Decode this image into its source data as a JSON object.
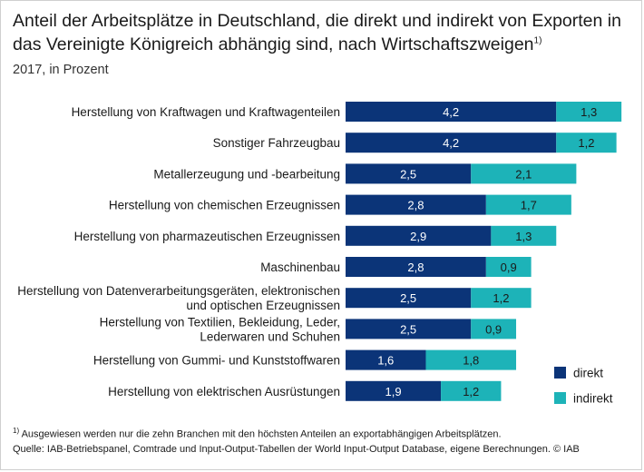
{
  "title": "Anteil der Arbeitsplätze in Deutschland, die direkt und indirekt von Exporten in das Vereinigte Königreich abhängig sind, nach Wirtschaftszweigen",
  "title_footnote_mark": "1)",
  "subtitle": "2017, in Prozent",
  "colors": {
    "direkt": "#0b3478",
    "indirekt": "#1db3b8"
  },
  "chart_data": {
    "type": "bar",
    "orientation": "horizontal",
    "stacked": true,
    "categories": [
      [
        "Herstellung von Kraftwagen und Kraftwagenteilen"
      ],
      [
        "Sonstiger Fahrzeugbau"
      ],
      [
        "Metallerzeugung und -bearbeitung"
      ],
      [
        "Herstellung von chemischen Erzeugnissen"
      ],
      [
        "Herstellung von pharmazeutischen Erzeugnissen"
      ],
      [
        "Maschinenbau"
      ],
      [
        "Herstellung von Datenverarbeitungsgeräten, elektronischen",
        "und optischen Erzeugnissen"
      ],
      [
        "Herstellung von Textilien, Bekleidung, Leder,",
        "Lederwaren und Schuhen"
      ],
      [
        "Herstellung von Gummi- und Kunststoffwaren"
      ],
      [
        "Herstellung von elektrischen Ausrüstungen"
      ]
    ],
    "series": [
      {
        "name": "direkt",
        "values": [
          4.2,
          4.2,
          2.5,
          2.8,
          2.9,
          2.8,
          2.5,
          2.5,
          1.6,
          1.9
        ],
        "labels": [
          "4,2",
          "4,2",
          "2,5",
          "2,8",
          "2,9",
          "2,8",
          "2,5",
          "2,5",
          "1,6",
          "1,9"
        ]
      },
      {
        "name": "indirekt",
        "values": [
          1.3,
          1.2,
          2.1,
          1.7,
          1.3,
          0.9,
          1.2,
          0.9,
          1.8,
          1.2
        ],
        "labels": [
          "1,3",
          "1,2",
          "2,1",
          "1,7",
          "1,3",
          "0,9",
          "1,2",
          "0,9",
          "1,8",
          "1,2"
        ]
      }
    ],
    "legend_position": "bottom-right",
    "grid": false
  },
  "footnote_mark": "1)",
  "footnote": "Ausgewiesen werden nur die zehn Branchen mit den höchsten Anteilen an exportabhängigen Arbeitsplätzen.",
  "source": "Quelle: IAB-Betriebspanel, Comtrade und Input-Output-Tabellen der World Input-Output Database, eigene Berechnungen. © IAB"
}
